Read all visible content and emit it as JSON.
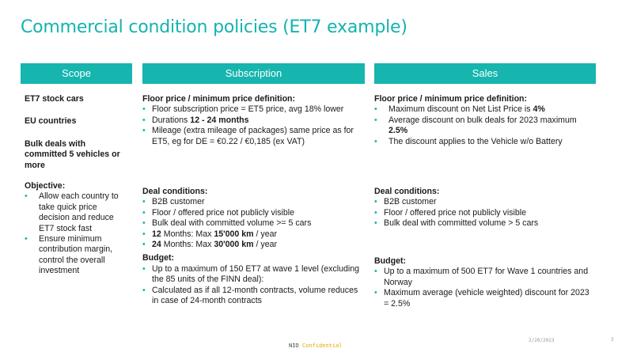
{
  "title": "Commercial condition policies (ET7 example)",
  "headers": {
    "scope": "Scope",
    "subscription": "Subscription",
    "sales": "Sales"
  },
  "scope": {
    "line1": "ET7 stock cars",
    "line2": "EU countries",
    "line3": "Bulk deals with committed  5 vehicles or more",
    "objective_head": "Objective:",
    "objective_items": [
      "Allow  each country to take quick price decision and reduce ET7 stock fast",
      "Ensure minimum contribution margin, control the overall investment"
    ]
  },
  "subscription": {
    "floor_head": "Floor price / minimum price definition:",
    "floor_1": "Floor subscription price = ET5 price, avg 18% lower",
    "floor_2_pre": "Durations ",
    "floor_2_bold": "12 - 24 months",
    "floor_3": "Mileage (extra mileage of packages) same price as for ET5, eg for DE = €0.22 / €0,185 (ex VAT)",
    "deal_head": "Deal conditions:",
    "deal_1": "B2B customer",
    "deal_2": "Floor / offered price not publicly  visible",
    "deal_3": "Bulk  deal with  committed  volume >= 5 cars",
    "deal_4_a": "12",
    "deal_4_b": " Months: Max ",
    "deal_4_c": "15'000 km",
    "deal_4_d": " / year",
    "deal_5_a": "24",
    "deal_5_b": " Months: Max ",
    "deal_5_c": "30'000 km",
    "deal_5_d": " / year",
    "budget_head": "Budget:",
    "budget_1": "Up to a maximum  of 150 ET7 at wave  1 level (excluding  the 85 units of the FINN deal):",
    "budget_2": "Calculated as if all 12-month contracts, volume reduces in case of 24-month contracts"
  },
  "sales": {
    "floor_head": "Floor price / minimum price definition:",
    "floor_1_pre": "Maximum  discount on Net List Price is ",
    "floor_1_bold": "4%",
    "floor_2_pre": "Average discount on bulk deals for 2023 maximum ",
    "floor_2_bold": "2.5%",
    "floor_3": "The discount applies to the Vehicle w/o Battery",
    "deal_head": "Deal conditions:",
    "deal_1": "B2B customer",
    "deal_2": "Floor / offered price not publicly  visible",
    "deal_3": "Bulk deal with  committed  volume  > 5 cars",
    "budget_head": "Budget:",
    "budget_1": "Up to a maximum  of 500 ET7 for Wave 1 countries and Norway",
    "budget_2": "Maximum  average  (vehicle weighted)  discount  for 2023 = 2.5%"
  },
  "footer": {
    "brand": "NIO",
    "confidential": "Confidential",
    "date": "2/20/2023",
    "page": "3"
  },
  "colors": {
    "accent": "#16b5ae",
    "title": "#14b3b0",
    "confidential": "#e0a800"
  }
}
